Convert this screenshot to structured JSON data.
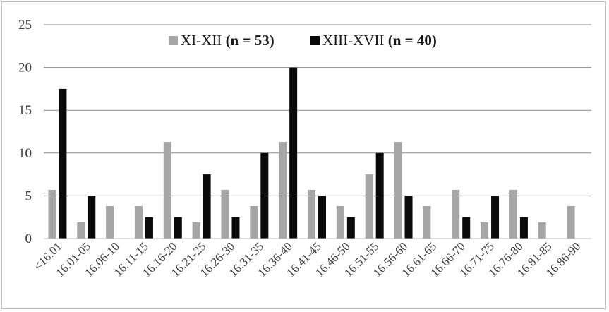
{
  "chart_data": {
    "type": "bar",
    "categories": [
      "<16.01",
      "16.01-05",
      "16.06-10",
      "16.11-15",
      "16.16-20",
      "16.21-25",
      "16.26-30",
      "16.31-35",
      "16.36-40",
      "16.41-45",
      "16.46-50",
      "16.51-55",
      "16.56-60",
      "16.61-65",
      "16.66-70",
      "16.71-75",
      "16.76-80",
      "16.81-85",
      "16.86-90"
    ],
    "series": [
      {
        "name": "XI-XII (n = 53)",
        "color": "#a6a6a6",
        "values": [
          5.7,
          1.9,
          3.8,
          3.8,
          11.3,
          1.9,
          5.7,
          3.8,
          11.3,
          5.7,
          3.8,
          7.5,
          11.3,
          3.8,
          5.7,
          1.9,
          5.7,
          1.9,
          3.8
        ]
      },
      {
        "name": "XIII-XVII (n = 40)",
        "color": "#0a0a0a",
        "values": [
          17.5,
          5,
          0,
          2.5,
          2.5,
          7.5,
          2.5,
          10,
          20,
          5,
          2.5,
          10,
          5,
          0,
          2.5,
          5,
          2.5,
          0,
          0
        ]
      }
    ],
    "ylim": [
      0,
      25
    ],
    "yticks": [
      "0",
      "5",
      "10",
      "15",
      "20",
      "25"
    ],
    "grid": true,
    "legend_position": "top-center",
    "title": "",
    "xlabel": "",
    "ylabel": ""
  }
}
